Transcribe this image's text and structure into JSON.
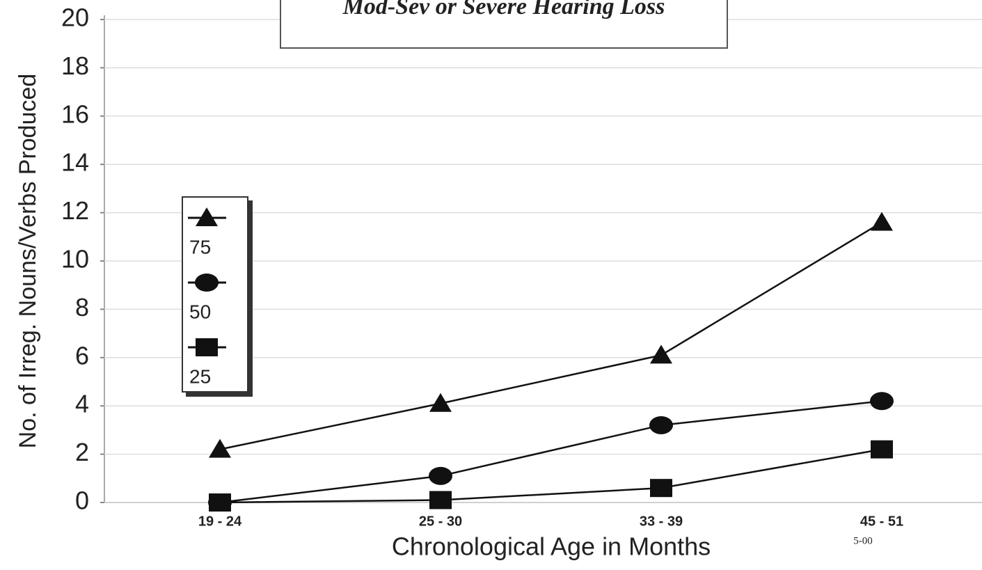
{
  "chart_data": {
    "type": "line",
    "title": "Mod-Sev or Severe Hearing Loss",
    "y_label": "No. of Irreg. Nouns/Verbs Produced",
    "x_label": "Chronological Age in Months",
    "annotation": "5-00",
    "categories": [
      "19 - 24",
      "25 - 30",
      "33 - 39",
      "45 - 51"
    ],
    "series": [
      {
        "name": "75",
        "color": "#111111",
        "marker": "triangle",
        "values": [
          2.2,
          4.1,
          6.1,
          11.6
        ]
      },
      {
        "name": "50",
        "color": "#111111",
        "marker": "circle",
        "values": [
          0,
          1.1,
          3.2,
          4.2
        ]
      },
      {
        "name": "25",
        "color": "#111111",
        "marker": "square",
        "values": [
          0,
          0.1,
          0.6,
          2.2
        ]
      }
    ],
    "ylim": [
      0,
      20
    ],
    "yticks": [
      0,
      2,
      4,
      6,
      8,
      10,
      12,
      14,
      16,
      18,
      20
    ],
    "grid": true
  }
}
